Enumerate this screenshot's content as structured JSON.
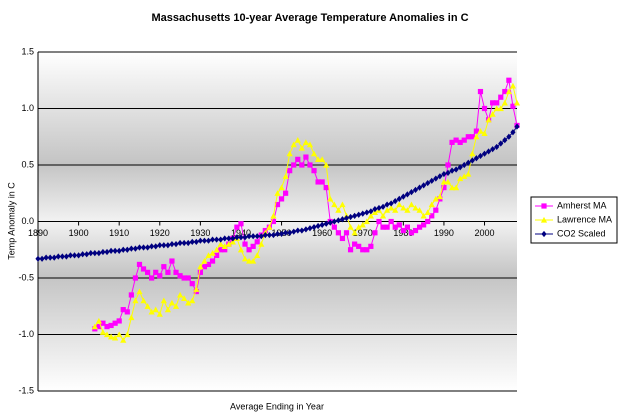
{
  "chart_data": {
    "type": "line",
    "title": "Massachusetts 10-year Average Temperature Anomalies in C",
    "x_label": "Average Ending in Year",
    "y_label": "Temp Anomaly in C",
    "xlim": [
      1890,
      2008
    ],
    "xticks": [
      1890,
      1900,
      1910,
      1920,
      1930,
      1940,
      1950,
      1960,
      1970,
      1980,
      1990,
      2000
    ],
    "ylim": [
      -1.5,
      1.5
    ],
    "yticks": [
      1.5,
      {
        "value": 1.0,
        "label": "1.0"
      },
      0.5,
      {
        "value": 0.0,
        "label": "0.0"
      },
      -0.5,
      {
        "value": -1.0,
        "label": "-1.0"
      },
      -1.5
    ],
    "grid": true,
    "legend": "right",
    "x": [
      1890,
      1891,
      1892,
      1893,
      1894,
      1895,
      1896,
      1897,
      1898,
      1899,
      1900,
      1901,
      1902,
      1903,
      1904,
      1905,
      1906,
      1907,
      1908,
      1909,
      1910,
      1911,
      1912,
      1913,
      1914,
      1915,
      1916,
      1917,
      1918,
      1919,
      1920,
      1921,
      1922,
      1923,
      1924,
      1925,
      1926,
      1927,
      1928,
      1929,
      1930,
      1931,
      1932,
      1933,
      1934,
      1935,
      1936,
      1937,
      1938,
      1939,
      1940,
      1941,
      1942,
      1943,
      1944,
      1945,
      1946,
      1947,
      1948,
      1949,
      1950,
      1951,
      1952,
      1953,
      1954,
      1955,
      1956,
      1957,
      1958,
      1959,
      1960,
      1961,
      1962,
      1963,
      1964,
      1965,
      1966,
      1967,
      1968,
      1969,
      1970,
      1971,
      1972,
      1973,
      1974,
      1975,
      1976,
      1977,
      1978,
      1979,
      1980,
      1981,
      1982,
      1983,
      1984,
      1985,
      1986,
      1987,
      1988,
      1989,
      1990,
      1991,
      1992,
      1993,
      1994,
      1995,
      1996,
      1997,
      1998,
      1999,
      2000,
      2001,
      2002,
      2003,
      2004,
      2005,
      2006,
      2007,
      2008
    ],
    "series": [
      {
        "name": "Amherst MA",
        "color": "#ff00ff",
        "marker": "square",
        "values": [
          null,
          null,
          null,
          null,
          null,
          null,
          null,
          null,
          null,
          null,
          null,
          null,
          null,
          null,
          -0.95,
          -0.93,
          -0.9,
          -0.93,
          -0.92,
          -0.9,
          -0.88,
          -0.78,
          -0.8,
          -0.65,
          -0.5,
          -0.38,
          -0.42,
          -0.45,
          -0.5,
          -0.45,
          -0.48,
          -0.4,
          -0.45,
          -0.35,
          -0.45,
          -0.48,
          -0.5,
          -0.5,
          -0.55,
          -0.62,
          -0.45,
          -0.4,
          -0.38,
          -0.35,
          -0.3,
          -0.25,
          -0.25,
          -0.2,
          -0.15,
          -0.05,
          -0.02,
          -0.2,
          -0.25,
          -0.22,
          -0.18,
          -0.12,
          -0.08,
          -0.05,
          0.0,
          0.15,
          0.2,
          0.25,
          0.45,
          0.5,
          0.55,
          0.5,
          0.57,
          0.5,
          0.45,
          0.35,
          0.35,
          0.3,
          0.0,
          -0.05,
          -0.1,
          -0.15,
          -0.1,
          -0.25,
          -0.2,
          -0.22,
          -0.25,
          -0.25,
          -0.22,
          -0.1,
          0.0,
          -0.05,
          -0.05,
          0.0,
          -0.05,
          -0.03,
          -0.08,
          -0.05,
          -0.1,
          -0.08,
          -0.05,
          -0.03,
          0.0,
          0.05,
          0.1,
          0.2,
          0.3,
          0.5,
          0.7,
          0.72,
          0.7,
          0.72,
          0.75,
          0.75,
          0.8,
          1.15,
          1.0,
          0.9,
          1.05,
          1.05,
          1.1,
          1.15,
          1.25,
          1.02,
          0.85
        ]
      },
      {
        "name": "Lawrence MA",
        "color": "#ffff00",
        "marker": "triangle",
        "values": [
          null,
          null,
          null,
          null,
          null,
          null,
          null,
          null,
          null,
          null,
          null,
          null,
          null,
          null,
          -0.93,
          -0.88,
          -0.98,
          -1.0,
          -1.02,
          -1.03,
          -1.0,
          -1.05,
          -1.0,
          -0.85,
          -0.7,
          -0.62,
          -0.7,
          -0.75,
          -0.8,
          -0.78,
          -0.82,
          -0.7,
          -0.78,
          -0.72,
          -0.75,
          -0.65,
          -0.68,
          -0.72,
          -0.7,
          -0.6,
          -0.4,
          -0.35,
          -0.3,
          -0.28,
          -0.25,
          -0.2,
          -0.22,
          -0.2,
          -0.18,
          -0.15,
          -0.25,
          -0.33,
          -0.35,
          -0.35,
          -0.3,
          -0.2,
          -0.1,
          -0.05,
          0.05,
          0.25,
          0.3,
          0.4,
          0.6,
          0.68,
          0.72,
          0.65,
          0.7,
          0.68,
          0.6,
          0.55,
          0.55,
          0.5,
          0.2,
          0.15,
          0.1,
          0.15,
          0.05,
          -0.05,
          -0.1,
          -0.05,
          -0.03,
          0.0,
          0.05,
          0.08,
          0.1,
          0.05,
          0.1,
          0.12,
          0.1,
          0.15,
          0.12,
          0.1,
          0.15,
          0.12,
          0.1,
          0.05,
          0.08,
          0.15,
          0.2,
          0.22,
          0.35,
          0.35,
          0.3,
          0.3,
          0.38,
          0.4,
          0.42,
          0.6,
          0.75,
          0.8,
          0.78,
          0.9,
          0.95,
          1.0,
          1.0,
          1.05,
          1.15,
          1.2,
          1.05
        ]
      },
      {
        "name": "CO2 Scaled",
        "color": "#000080",
        "marker": "diamond",
        "values": [
          -0.33,
          -0.33,
          -0.32,
          -0.32,
          -0.32,
          -0.31,
          -0.31,
          -0.31,
          -0.3,
          -0.3,
          -0.3,
          -0.29,
          -0.29,
          -0.28,
          -0.28,
          -0.28,
          -0.27,
          -0.27,
          -0.26,
          -0.26,
          -0.26,
          -0.25,
          -0.25,
          -0.24,
          -0.24,
          -0.23,
          -0.23,
          -0.23,
          -0.22,
          -0.22,
          -0.21,
          -0.21,
          -0.21,
          -0.2,
          -0.2,
          -0.19,
          -0.19,
          -0.19,
          -0.18,
          -0.18,
          -0.17,
          -0.17,
          -0.17,
          -0.16,
          -0.16,
          -0.16,
          -0.15,
          -0.15,
          -0.15,
          -0.14,
          -0.14,
          -0.14,
          -0.13,
          -0.13,
          -0.13,
          -0.13,
          -0.12,
          -0.12,
          -0.12,
          -0.11,
          -0.11,
          -0.1,
          -0.1,
          -0.09,
          -0.08,
          -0.08,
          -0.07,
          -0.06,
          -0.05,
          -0.04,
          -0.03,
          -0.02,
          -0.01,
          0.0,
          0.01,
          0.02,
          0.03,
          0.04,
          0.05,
          0.06,
          0.07,
          0.08,
          0.09,
          0.11,
          0.12,
          0.13,
          0.15,
          0.16,
          0.18,
          0.2,
          0.22,
          0.24,
          0.26,
          0.28,
          0.3,
          0.32,
          0.34,
          0.36,
          0.38,
          0.4,
          0.42,
          0.43,
          0.45,
          0.46,
          0.48,
          0.5,
          0.52,
          0.54,
          0.56,
          0.58,
          0.6,
          0.62,
          0.64,
          0.66,
          0.69,
          0.72,
          0.75,
          0.79,
          0.84
        ]
      }
    ]
  }
}
